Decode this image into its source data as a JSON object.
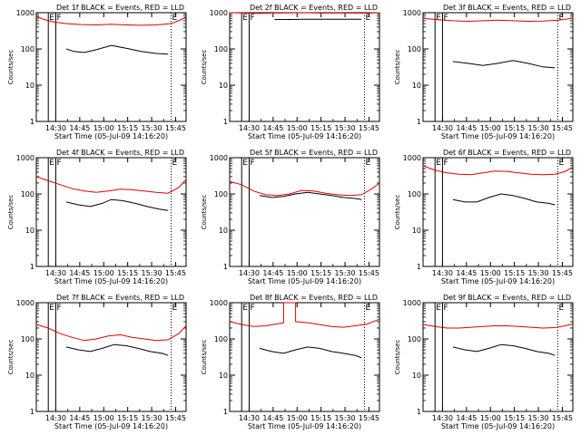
{
  "chart_data": [
    {
      "type": "line",
      "title": "Det 1f BLACK = Events, RED = LLD",
      "ylabel": "Counts/sec",
      "xlabel": "Start Time (05-Jul-09 14:16:20)",
      "yscale": "log",
      "ylim": [
        1,
        1000
      ],
      "y_ticks": [
        "1",
        "10",
        "100",
        "1000"
      ],
      "x_ticks": [
        "14:30",
        "14:45",
        "15:00",
        "15:15",
        "15:30",
        "15:45"
      ],
      "markers": [
        "E",
        "F",
        "E"
      ],
      "series": [
        {
          "name": "Events",
          "color": "#000000",
          "x": [
            0.2,
            0.25,
            0.32,
            0.4,
            0.5,
            0.6,
            0.7,
            0.8,
            0.88
          ],
          "y": [
            100,
            85,
            80,
            95,
            125,
            105,
            85,
            75,
            72
          ]
        },
        {
          "name": "LLD",
          "color": "#e00000",
          "x": [
            0.0,
            0.05,
            0.12,
            0.2,
            0.3,
            0.4,
            0.5,
            0.6,
            0.7,
            0.8,
            0.9,
            0.95,
            1.0
          ],
          "y": [
            800,
            650,
            550,
            500,
            470,
            460,
            480,
            460,
            450,
            460,
            500,
            600,
            750
          ]
        }
      ]
    },
    {
      "type": "line",
      "title": "Det 2f BLACK = Events, RED = LLD",
      "ylabel": "Counts/sec",
      "xlabel": "Start Time (05-Jul-09 14:16:20)",
      "yscale": "log",
      "ylim": [
        1,
        1000
      ],
      "y_ticks": [
        "1",
        "10",
        "100",
        "1000"
      ],
      "x_ticks": [
        "14:30",
        "14:45",
        "15:00",
        "15:15",
        "15:30",
        "15:45"
      ],
      "markers": [
        "E",
        "F",
        "E"
      ],
      "series": [
        {
          "name": "Events",
          "color": "#000000",
          "x": [
            0.3,
            0.4,
            0.5,
            0.6,
            0.7,
            0.8,
            0.88
          ],
          "y": [
            650,
            650,
            660,
            660,
            660,
            660,
            660
          ]
        },
        {
          "name": "LLD",
          "color": "#e00000",
          "x": [
            0.0,
            0.1,
            0.2,
            0.3,
            0.4,
            0.5,
            0.6,
            0.7,
            0.8,
            0.9,
            1.0
          ],
          "y": [
            1000,
            980,
            960,
            980,
            990,
            1000,
            980,
            990,
            980,
            970,
            1000
          ]
        }
      ]
    },
    {
      "type": "line",
      "title": "Det 3f BLACK = Events, RED = LLD",
      "ylabel": "Counts/sec",
      "xlabel": "Start Time (05-Jul-09 14:16:20)",
      "yscale": "log",
      "ylim": [
        1,
        1000
      ],
      "y_ticks": [
        "1",
        "10",
        "100",
        "1000"
      ],
      "x_ticks": [
        "14:30",
        "14:45",
        "15:00",
        "15:15",
        "15:30",
        "15:45"
      ],
      "markers": [
        "E",
        "F",
        "E"
      ],
      "series": [
        {
          "name": "Events",
          "color": "#000000",
          "x": [
            0.2,
            0.3,
            0.4,
            0.5,
            0.6,
            0.7,
            0.8,
            0.88
          ],
          "y": [
            45,
            40,
            35,
            40,
            48,
            40,
            32,
            30
          ]
        },
        {
          "name": "LLD",
          "color": "#e00000",
          "x": [
            0.0,
            0.1,
            0.2,
            0.3,
            0.4,
            0.5,
            0.6,
            0.7,
            0.8,
            0.9,
            1.0
          ],
          "y": [
            700,
            640,
            600,
            580,
            600,
            620,
            600,
            580,
            590,
            620,
            700
          ]
        }
      ]
    },
    {
      "type": "line",
      "title": "Det 4f BLACK = Events, RED = LLD",
      "ylabel": "Counts/sec",
      "xlabel": "Start Time (05-Jul-09 14:16:20)",
      "yscale": "log",
      "ylim": [
        1,
        1000
      ],
      "y_ticks": [
        "1",
        "10",
        "100",
        "1000"
      ],
      "x_ticks": [
        "14:30",
        "14:45",
        "15:00",
        "15:15",
        "15:30",
        "15:45"
      ],
      "markers": [
        "E",
        "F",
        "E"
      ],
      "series": [
        {
          "name": "Events",
          "color": "#000000",
          "x": [
            0.2,
            0.28,
            0.36,
            0.44,
            0.5,
            0.58,
            0.66,
            0.74,
            0.82,
            0.88
          ],
          "y": [
            60,
            50,
            45,
            55,
            70,
            65,
            55,
            45,
            38,
            35
          ]
        },
        {
          "name": "LLD",
          "color": "#e00000",
          "x": [
            0.0,
            0.08,
            0.16,
            0.24,
            0.32,
            0.4,
            0.48,
            0.56,
            0.64,
            0.72,
            0.8,
            0.88,
            0.95,
            1.0
          ],
          "y": [
            300,
            230,
            180,
            140,
            120,
            110,
            120,
            135,
            130,
            120,
            110,
            105,
            150,
            250
          ]
        }
      ]
    },
    {
      "type": "line",
      "title": "Det 5f BLACK = Events, RED = LLD",
      "ylabel": "Counts/sec",
      "xlabel": "Start Time (05-Jul-09 14:16:20)",
      "yscale": "log",
      "ylim": [
        1,
        1000
      ],
      "y_ticks": [
        "1",
        "10",
        "100",
        "1000"
      ],
      "x_ticks": [
        "14:30",
        "14:45",
        "15:00",
        "15:15",
        "15:30",
        "15:45"
      ],
      "markers": [
        "E",
        "F",
        "E"
      ],
      "series": [
        {
          "name": "Events",
          "color": "#000000",
          "x": [
            0.2,
            0.28,
            0.36,
            0.44,
            0.52,
            0.6,
            0.68,
            0.76,
            0.84,
            0.88
          ],
          "y": [
            90,
            80,
            85,
            100,
            110,
            100,
            90,
            80,
            75,
            70
          ]
        },
        {
          "name": "LLD",
          "color": "#e00000",
          "x": [
            0.0,
            0.08,
            0.16,
            0.24,
            0.32,
            0.4,
            0.48,
            0.56,
            0.64,
            0.72,
            0.8,
            0.88,
            0.95,
            1.0
          ],
          "y": [
            220,
            180,
            120,
            95,
            90,
            100,
            125,
            120,
            105,
            95,
            90,
            95,
            140,
            200
          ]
        }
      ]
    },
    {
      "type": "line",
      "title": "Det 6f BLACK = Events, RED = LLD",
      "ylabel": "Counts/sec",
      "xlabel": "Start Time (05-Jul-09 14:16:20)",
      "yscale": "log",
      "ylim": [
        1,
        1000
      ],
      "y_ticks": [
        "1",
        "10",
        "100",
        "1000"
      ],
      "x_ticks": [
        "14:30",
        "14:45",
        "15:00",
        "15:15",
        "15:30",
        "15:45"
      ],
      "markers": [
        "E",
        "F",
        "E"
      ],
      "series": [
        {
          "name": "Events",
          "color": "#000000",
          "x": [
            0.2,
            0.28,
            0.36,
            0.44,
            0.52,
            0.6,
            0.68,
            0.76,
            0.84,
            0.88
          ],
          "y": [
            70,
            60,
            60,
            80,
            100,
            90,
            75,
            60,
            55,
            50
          ]
        },
        {
          "name": "LLD",
          "color": "#e00000",
          "x": [
            0.0,
            0.08,
            0.16,
            0.24,
            0.32,
            0.4,
            0.48,
            0.56,
            0.64,
            0.72,
            0.8,
            0.88,
            0.95,
            1.0
          ],
          "y": [
            600,
            450,
            380,
            350,
            340,
            380,
            430,
            420,
            380,
            350,
            340,
            350,
            420,
            550
          ]
        }
      ]
    },
    {
      "type": "line",
      "title": "Det 7f BLACK = Events, RED = LLD",
      "ylabel": "Counts/sec",
      "xlabel": "Start Time (05-Jul-09 14:16:20)",
      "yscale": "log",
      "ylim": [
        1,
        1000
      ],
      "y_ticks": [
        "1",
        "10",
        "100",
        "1000"
      ],
      "x_ticks": [
        "14:30",
        "14:45",
        "15:00",
        "15:15",
        "15:30",
        "15:45"
      ],
      "markers": [
        "E",
        "F",
        "E"
      ],
      "series": [
        {
          "name": "Events",
          "color": "#000000",
          "x": [
            0.2,
            0.28,
            0.36,
            0.44,
            0.52,
            0.6,
            0.68,
            0.76,
            0.84,
            0.88
          ],
          "y": [
            60,
            50,
            45,
            55,
            70,
            65,
            55,
            45,
            40,
            35
          ]
        },
        {
          "name": "LLD",
          "color": "#e00000",
          "x": [
            0.0,
            0.08,
            0.16,
            0.24,
            0.32,
            0.4,
            0.48,
            0.56,
            0.64,
            0.72,
            0.8,
            0.88,
            0.95,
            1.0
          ],
          "y": [
            250,
            200,
            140,
            110,
            90,
            100,
            120,
            130,
            110,
            100,
            90,
            95,
            140,
            230
          ]
        }
      ]
    },
    {
      "type": "line",
      "title": "Det 8f BLACK = Events, RED = LLD",
      "ylabel": "Counts/sec",
      "xlabel": "Start Time (05-Jul-09 14:16:20)",
      "yscale": "log",
      "ylim": [
        1,
        1000
      ],
      "y_ticks": [
        "1",
        "10",
        "100",
        "1000"
      ],
      "x_ticks": [
        "14:30",
        "14:45",
        "15:00",
        "15:15",
        "15:30",
        "15:45"
      ],
      "markers": [
        "E",
        "F",
        "E"
      ],
      "series": [
        {
          "name": "Events",
          "color": "#000000",
          "x": [
            0.2,
            0.28,
            0.36,
            0.44,
            0.52,
            0.6,
            0.68,
            0.76,
            0.84,
            0.88
          ],
          "y": [
            55,
            45,
            40,
            50,
            60,
            55,
            45,
            40,
            35,
            30
          ]
        },
        {
          "name": "LLD",
          "color": "#e00000",
          "x": [
            0.0,
            0.08,
            0.16,
            0.24,
            0.32,
            0.36,
            0.36,
            0.44,
            0.44,
            0.52,
            0.6,
            0.68,
            0.76,
            0.84,
            0.92,
            1.0
          ],
          "y": [
            300,
            250,
            220,
            230,
            260,
            280,
            1000,
            1000,
            300,
            280,
            250,
            220,
            210,
            230,
            260,
            350
          ]
        }
      ]
    },
    {
      "type": "line",
      "title": "Det 9f BLACK = Events, RED = LLD",
      "ylabel": "Counts/sec",
      "xlabel": "Start Time (05-Jul-09 14:16:20)",
      "yscale": "log",
      "ylim": [
        1,
        1000
      ],
      "y_ticks": [
        "1",
        "10",
        "100",
        "1000"
      ],
      "x_ticks": [
        "14:30",
        "14:45",
        "15:00",
        "15:15",
        "15:30",
        "15:45"
      ],
      "markers": [
        "E",
        "F",
        "E"
      ],
      "series": [
        {
          "name": "Events",
          "color": "#000000",
          "x": [
            0.2,
            0.28,
            0.36,
            0.44,
            0.52,
            0.6,
            0.68,
            0.76,
            0.84,
            0.88
          ],
          "y": [
            60,
            50,
            45,
            55,
            70,
            65,
            55,
            45,
            40,
            35
          ]
        },
        {
          "name": "LLD",
          "color": "#e00000",
          "x": [
            0.0,
            0.08,
            0.16,
            0.24,
            0.32,
            0.4,
            0.48,
            0.56,
            0.64,
            0.72,
            0.8,
            0.88,
            0.95,
            1.0
          ],
          "y": [
            250,
            220,
            200,
            200,
            210,
            220,
            230,
            230,
            220,
            210,
            200,
            205,
            230,
            260
          ]
        }
      ]
    }
  ]
}
